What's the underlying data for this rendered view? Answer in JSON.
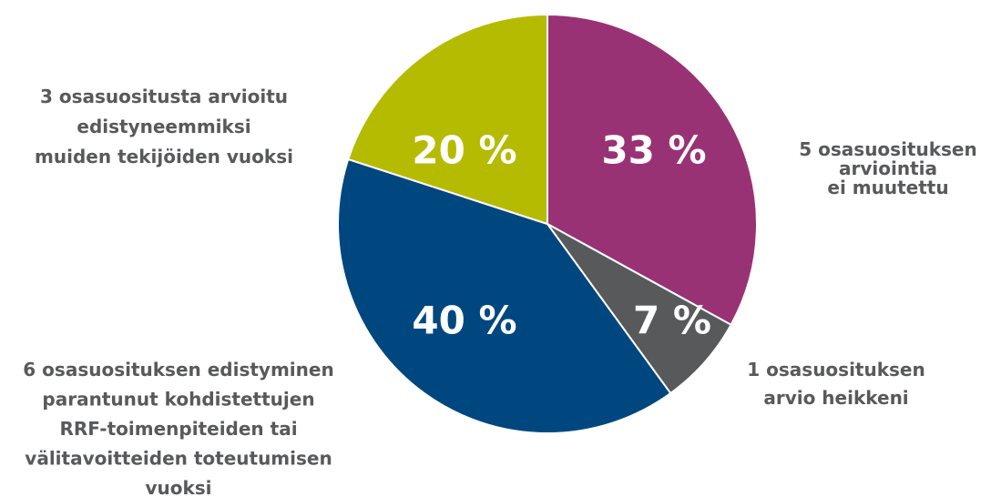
{
  "chart_data": {
    "type": "pie",
    "categories": [
      "5 osasuosituksen\narviointia\nei muutettu",
      "1 osasuosituksen\narvio heikkeni",
      "6 osasuosituksen edistyminen\nparantunut kohdistettujen\nRRF-toimenpiteiden tai\nvälitavoitteiden toteutumisen\nvuoksi",
      "3 osasuositusta arvioitu\nedistyneemmiksi\nmuiden tekijöiden vuoksi"
    ],
    "values": [
      33,
      7,
      40,
      20
    ],
    "value_labels": [
      "33 %",
      "7 %",
      "40 %",
      "20 %"
    ],
    "colors": [
      "#993275",
      "#58595b",
      "#00477f",
      "#b5bb00"
    ]
  }
}
